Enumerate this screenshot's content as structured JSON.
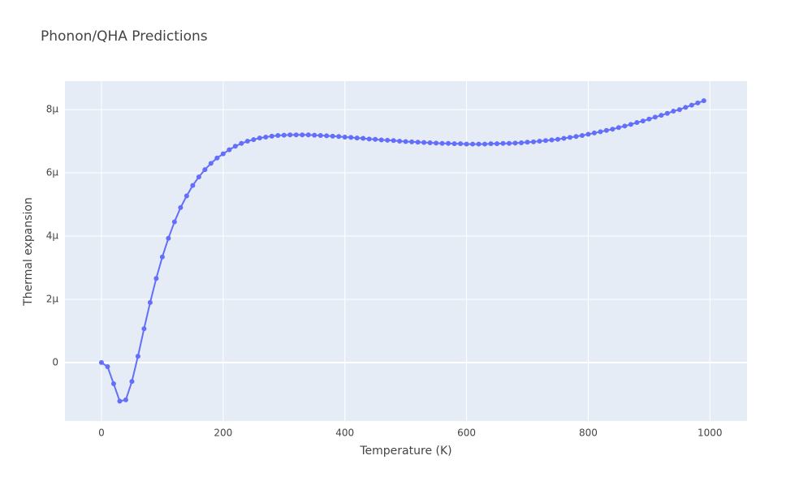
{
  "chart_data": {
    "type": "line",
    "title": "Phonon/QHA Predictions",
    "x_label": "Temperature (K)",
    "y_label": "Thermal expansion",
    "xlim": [
      -60,
      1061
    ],
    "ylim": [
      -1.85e-06,
      8.9e-06
    ],
    "xticks": [
      0,
      200,
      400,
      600,
      800,
      1000
    ],
    "yticks": [
      0,
      {
        "value": 2e-06,
        "label": "2μ"
      },
      {
        "value": 4e-06,
        "label": "4μ"
      },
      {
        "value": 6e-06,
        "label": "6μ"
      },
      {
        "value": 8e-06,
        "label": "8μ"
      }
    ],
    "grid": true,
    "markers": true,
    "x": [
      0,
      10,
      20,
      30,
      40,
      50,
      60,
      70,
      80,
      90,
      100,
      110,
      120,
      130,
      140,
      150,
      160,
      170,
      180,
      190,
      200,
      210,
      220,
      230,
      240,
      250,
      260,
      270,
      280,
      290,
      300,
      310,
      320,
      330,
      340,
      350,
      360,
      370,
      380,
      390,
      400,
      410,
      420,
      430,
      440,
      450,
      460,
      470,
      480,
      490,
      500,
      510,
      520,
      530,
      540,
      550,
      560,
      570,
      580,
      590,
      600,
      610,
      620,
      630,
      640,
      650,
      660,
      670,
      680,
      690,
      700,
      710,
      720,
      730,
      740,
      750,
      760,
      770,
      780,
      790,
      800,
      810,
      820,
      830,
      840,
      850,
      860,
      870,
      880,
      890,
      900,
      910,
      920,
      930,
      940,
      950,
      960,
      970,
      980,
      990
    ],
    "series": [
      {
        "name": "Thermal expansion",
        "color": "#636efa",
        "values": [
          0,
          -1.3e-07,
          -6.7e-07,
          -1.22e-06,
          -1.18e-06,
          -6e-07,
          2e-07,
          1.07e-06,
          1.9e-06,
          2.66e-06,
          3.34e-06,
          3.93e-06,
          4.45e-06,
          4.9e-06,
          5.27e-06,
          5.6e-06,
          5.87e-06,
          6.1e-06,
          6.3e-06,
          6.47e-06,
          6.6e-06,
          6.73e-06,
          6.84e-06,
          6.93e-06,
          7e-06,
          7.05e-06,
          7.1e-06,
          7.13e-06,
          7.16e-06,
          7.18e-06,
          7.19e-06,
          7.2e-06,
          7.2e-06,
          7.2e-06,
          7.2e-06,
          7.19e-06,
          7.18e-06,
          7.17e-06,
          7.16e-06,
          7.15e-06,
          7.13e-06,
          7.12e-06,
          7.1e-06,
          7.09e-06,
          7.07e-06,
          7.06e-06,
          7.04e-06,
          7.03e-06,
          7.02e-06,
          7e-06,
          6.99e-06,
          6.98e-06,
          6.97e-06,
          6.96e-06,
          6.95e-06,
          6.94e-06,
          6.93e-06,
          6.93e-06,
          6.92e-06,
          6.92e-06,
          6.91e-06,
          6.91e-06,
          6.91e-06,
          6.91e-06,
          6.92e-06,
          6.92e-06,
          6.93e-06,
          6.93e-06,
          6.94e-06,
          6.95e-06,
          6.97e-06,
          6.98e-06,
          7e-06,
          7.02e-06,
          7.04e-06,
          7.06e-06,
          7.09e-06,
          7.12e-06,
          7.15e-06,
          7.18e-06,
          7.22e-06,
          7.26e-06,
          7.3e-06,
          7.34e-06,
          7.38e-06,
          7.43e-06,
          7.48e-06,
          7.53e-06,
          7.59e-06,
          7.64e-06,
          7.7e-06,
          7.76e-06,
          7.82e-06,
          7.88e-06,
          7.95e-06,
          8e-06,
          8.07e-06,
          8.14e-06,
          8.21e-06,
          8.28e-06
        ]
      }
    ]
  }
}
